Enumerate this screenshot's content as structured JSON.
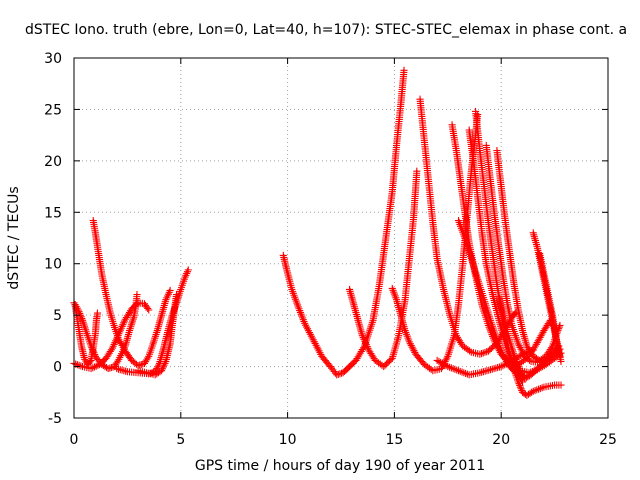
{
  "chart_data": {
    "type": "scatter",
    "title": "dSTEC Iono. truth (ebre, Lon=0, Lat=40, h=107): STEC-STEC_elemax in phase cont. a",
    "xlabel": "GPS time / hours of day 190 of year 2011",
    "ylabel": "dSTEC  / TECUs",
    "xlim": [
      0,
      25
    ],
    "ylim": [
      -5,
      30
    ],
    "grid": true,
    "marker": "+",
    "colors": {
      "series": "#ff0000",
      "axes": "#000000",
      "grid": "#a0a0a0",
      "background": "#ffffff"
    },
    "x_ticks": [
      {
        "value": 0,
        "label": "0"
      },
      {
        "value": 5,
        "label": "5"
      },
      {
        "value": 10,
        "label": "10"
      },
      {
        "value": 15,
        "label": "15"
      },
      {
        "value": 20,
        "label": "20"
      },
      {
        "value": 25,
        "label": "25"
      }
    ],
    "y_ticks": [
      {
        "value": -5,
        "label": "-5"
      },
      {
        "value": 0,
        "label": "0"
      },
      {
        "value": 5,
        "label": "5"
      },
      {
        "value": 10,
        "label": "10"
      },
      {
        "value": 15,
        "label": "15"
      },
      {
        "value": 20,
        "label": "20"
      },
      {
        "value": 25,
        "label": "25"
      },
      {
        "value": 30,
        "label": "30"
      }
    ],
    "series": [
      {
        "points": [
          [
            0.0,
            6.2
          ],
          [
            0.2,
            5.5
          ],
          [
            0.4,
            4.5
          ],
          [
            0.6,
            3.2
          ],
          [
            0.8,
            2.0
          ],
          [
            1.0,
            1.0
          ],
          [
            1.3,
            0.2
          ],
          [
            1.6,
            -0.2
          ],
          [
            1.9,
            0.0
          ],
          [
            2.1,
            0.7
          ],
          [
            2.4,
            2.0
          ],
          [
            2.6,
            3.5
          ],
          [
            2.8,
            4.8
          ],
          [
            2.9,
            6.0
          ],
          [
            2.95,
            7.0
          ]
        ]
      },
      {
        "points": [
          [
            0.05,
            6.0
          ],
          [
            0.2,
            4.0
          ],
          [
            0.35,
            2.0
          ],
          [
            0.5,
            0.7
          ],
          [
            0.65,
            0.2
          ],
          [
            0.8,
            0.6
          ],
          [
            0.9,
            1.8
          ],
          [
            1.0,
            3.2
          ],
          [
            1.05,
            4.5
          ],
          [
            1.1,
            5.2
          ]
        ]
      },
      {
        "points": [
          [
            0.9,
            14.2
          ],
          [
            1.0,
            13.0
          ],
          [
            1.15,
            11.0
          ],
          [
            1.3,
            9.0
          ],
          [
            1.5,
            7.0
          ],
          [
            1.7,
            5.2
          ],
          [
            1.9,
            3.8
          ],
          [
            2.1,
            2.6
          ],
          [
            2.4,
            1.5
          ],
          [
            2.7,
            0.6
          ],
          [
            3.0,
            0.1
          ],
          [
            3.3,
            0.3
          ],
          [
            3.5,
            1.0
          ],
          [
            3.7,
            2.2
          ],
          [
            3.9,
            3.5
          ],
          [
            4.1,
            5.0
          ],
          [
            4.3,
            6.5
          ],
          [
            4.5,
            7.4
          ]
        ]
      },
      {
        "points": [
          [
            0.0,
            0.3
          ],
          [
            0.4,
            0.0
          ],
          [
            0.8,
            -0.2
          ],
          [
            1.2,
            0.2
          ],
          [
            1.5,
            0.8
          ],
          [
            1.8,
            1.8
          ],
          [
            2.1,
            3.2
          ],
          [
            2.4,
            4.6
          ],
          [
            2.7,
            5.6
          ],
          [
            3.0,
            6.2
          ],
          [
            3.3,
            6.1
          ],
          [
            3.5,
            5.5
          ]
        ]
      },
      {
        "points": [
          [
            2.0,
            -0.2
          ],
          [
            2.5,
            -0.5
          ],
          [
            3.0,
            -0.6
          ],
          [
            3.5,
            -0.7
          ],
          [
            3.8,
            -0.5
          ],
          [
            4.0,
            0.3
          ],
          [
            4.2,
            1.8
          ],
          [
            4.4,
            3.5
          ],
          [
            4.6,
            5.0
          ],
          [
            4.8,
            6.2
          ],
          [
            5.0,
            7.5
          ],
          [
            5.2,
            8.7
          ],
          [
            5.35,
            9.4
          ]
        ]
      },
      {
        "points": [
          [
            3.0,
            -0.4
          ],
          [
            3.4,
            -0.6
          ],
          [
            3.8,
            -0.8
          ],
          [
            4.1,
            -0.4
          ],
          [
            4.3,
            0.5
          ],
          [
            4.5,
            2.2
          ],
          [
            4.6,
            4.0
          ],
          [
            4.7,
            5.5
          ],
          [
            4.8,
            7.0
          ]
        ]
      },
      {
        "points": [
          [
            9.8,
            10.8
          ],
          [
            9.95,
            9.5
          ],
          [
            10.2,
            7.5
          ],
          [
            10.5,
            5.8
          ],
          [
            10.8,
            4.2
          ],
          [
            11.2,
            2.6
          ],
          [
            11.6,
            1.0
          ],
          [
            12.0,
            0.0
          ],
          [
            12.3,
            -0.8
          ],
          [
            12.6,
            -0.6
          ],
          [
            12.9,
            0.0
          ],
          [
            13.2,
            0.6
          ],
          [
            13.6,
            2.0
          ],
          [
            14.0,
            4.5
          ],
          [
            14.3,
            8.0
          ],
          [
            14.6,
            12.5
          ],
          [
            14.9,
            17.0
          ],
          [
            15.1,
            21.5
          ],
          [
            15.3,
            25.5
          ],
          [
            15.45,
            28.8
          ]
        ]
      },
      {
        "points": [
          [
            12.9,
            7.5
          ],
          [
            13.1,
            6.0
          ],
          [
            13.3,
            4.5
          ],
          [
            13.5,
            3.0
          ],
          [
            13.8,
            1.6
          ],
          [
            14.1,
            0.6
          ],
          [
            14.5,
            0.0
          ],
          [
            14.9,
            0.8
          ],
          [
            15.2,
            3.0
          ],
          [
            15.5,
            6.5
          ],
          [
            15.7,
            10.5
          ],
          [
            15.9,
            14.5
          ],
          [
            16.05,
            19.0
          ]
        ]
      },
      {
        "points": [
          [
            14.9,
            7.6
          ],
          [
            15.1,
            6.5
          ],
          [
            15.3,
            5.0
          ],
          [
            15.5,
            3.5
          ],
          [
            15.7,
            2.4
          ],
          [
            16.0,
            1.2
          ],
          [
            16.4,
            0.2
          ],
          [
            16.8,
            -0.4
          ],
          [
            17.2,
            -0.2
          ],
          [
            17.5,
            1.0
          ],
          [
            17.8,
            3.0
          ],
          [
            18.0,
            6.0
          ],
          [
            18.2,
            10.0
          ],
          [
            18.4,
            14.5
          ],
          [
            18.6,
            19.0
          ],
          [
            18.8,
            22.5
          ],
          [
            18.9,
            24.5
          ]
        ]
      },
      {
        "points": [
          [
            16.2,
            26.0
          ],
          [
            16.4,
            22.0
          ],
          [
            16.6,
            18.0
          ],
          [
            16.8,
            14.0
          ],
          [
            17.0,
            10.5
          ],
          [
            17.3,
            7.5
          ],
          [
            17.6,
            5.0
          ],
          [
            17.9,
            3.0
          ],
          [
            18.2,
            2.0
          ],
          [
            18.6,
            1.4
          ],
          [
            19.0,
            1.2
          ],
          [
            19.4,
            1.5
          ],
          [
            19.8,
            2.3
          ],
          [
            20.2,
            3.6
          ],
          [
            20.5,
            4.8
          ],
          [
            20.7,
            5.3
          ]
        ]
      },
      {
        "points": [
          [
            17.7,
            23.5
          ],
          [
            17.9,
            21.0
          ],
          [
            18.1,
            18.0
          ],
          [
            18.3,
            15.0
          ],
          [
            18.5,
            12.0
          ],
          [
            18.8,
            8.8
          ],
          [
            19.1,
            6.0
          ],
          [
            19.4,
            4.0
          ],
          [
            19.7,
            2.4
          ],
          [
            20.0,
            1.2
          ],
          [
            20.4,
            0.4
          ],
          [
            20.8,
            0.2
          ],
          [
            21.2,
            0.8
          ],
          [
            21.6,
            2.0
          ],
          [
            22.0,
            3.5
          ],
          [
            22.3,
            4.5
          ]
        ]
      },
      {
        "points": [
          [
            17.0,
            0.6
          ],
          [
            17.5,
            0.0
          ],
          [
            18.0,
            -0.4
          ],
          [
            18.5,
            -0.8
          ],
          [
            19.0,
            -0.6
          ],
          [
            19.5,
            -0.3
          ],
          [
            20.0,
            0.0
          ],
          [
            20.5,
            0.5
          ],
          [
            21.0,
            1.2
          ],
          [
            21.5,
            1.6
          ]
        ]
      },
      {
        "points": [
          [
            18.0,
            14.2
          ],
          [
            18.3,
            12.5
          ],
          [
            18.6,
            10.5
          ],
          [
            18.9,
            8.5
          ],
          [
            19.2,
            6.5
          ],
          [
            19.5,
            4.5
          ],
          [
            19.8,
            2.6
          ],
          [
            20.1,
            1.0
          ],
          [
            20.4,
            0.0
          ],
          [
            20.7,
            -0.6
          ],
          [
            21.0,
            -0.9
          ]
        ]
      },
      {
        "points": [
          [
            18.5,
            23.0
          ],
          [
            18.7,
            20.0
          ],
          [
            18.9,
            16.5
          ],
          [
            19.1,
            13.0
          ],
          [
            19.3,
            10.0
          ],
          [
            19.6,
            7.0
          ],
          [
            19.9,
            4.5
          ],
          [
            20.2,
            2.2
          ],
          [
            20.5,
            0.5
          ],
          [
            20.8,
            -0.8
          ],
          [
            21.0,
            -1.5
          ]
        ]
      },
      {
        "points": [
          [
            18.8,
            24.8
          ],
          [
            19.0,
            21.0
          ],
          [
            19.2,
            17.5
          ],
          [
            19.4,
            14.0
          ],
          [
            19.6,
            11.0
          ],
          [
            19.8,
            8.0
          ],
          [
            20.0,
            5.5
          ],
          [
            20.2,
            3.2
          ],
          [
            20.4,
            1.2
          ],
          [
            20.6,
            -0.3
          ],
          [
            20.8,
            -1.5
          ],
          [
            21.0,
            -2.5
          ],
          [
            21.2,
            -2.8
          ],
          [
            21.5,
            -2.4
          ],
          [
            22.0,
            -2.0
          ],
          [
            22.5,
            -1.8
          ],
          [
            22.8,
            -1.8
          ]
        ]
      },
      {
        "points": [
          [
            19.8,
            21.0
          ],
          [
            20.0,
            17.5
          ],
          [
            20.2,
            14.0
          ],
          [
            20.4,
            11.0
          ],
          [
            20.6,
            8.0
          ],
          [
            20.8,
            5.5
          ],
          [
            21.0,
            3.5
          ],
          [
            21.2,
            2.0
          ],
          [
            21.5,
            1.0
          ],
          [
            21.8,
            0.6
          ],
          [
            22.1,
            1.0
          ],
          [
            22.4,
            2.0
          ],
          [
            22.6,
            3.2
          ],
          [
            22.75,
            4.0
          ]
        ]
      },
      {
        "points": [
          [
            19.3,
            21.5
          ],
          [
            19.5,
            18.0
          ],
          [
            19.7,
            14.5
          ],
          [
            19.9,
            11.5
          ],
          [
            20.1,
            8.5
          ],
          [
            20.3,
            6.0
          ],
          [
            20.5,
            4.0
          ],
          [
            20.8,
            2.2
          ],
          [
            21.1,
            1.0
          ],
          [
            21.4,
            0.5
          ],
          [
            21.8,
            0.4
          ],
          [
            22.2,
            0.9
          ],
          [
            22.5,
            1.5
          ],
          [
            22.7,
            2.0
          ]
        ]
      },
      {
        "points": [
          [
            19.9,
            6.8
          ],
          [
            20.1,
            5.0
          ],
          [
            20.3,
            3.2
          ],
          [
            20.5,
            1.8
          ],
          [
            20.7,
            0.5
          ],
          [
            20.9,
            -0.5
          ],
          [
            21.1,
            -1.2
          ],
          [
            21.4,
            -0.8
          ],
          [
            21.7,
            -0.2
          ],
          [
            22.0,
            0.4
          ],
          [
            22.3,
            0.9
          ],
          [
            22.6,
            1.4
          ],
          [
            22.75,
            1.7
          ]
        ]
      },
      {
        "points": [
          [
            21.5,
            13.0
          ],
          [
            21.7,
            11.5
          ],
          [
            21.9,
            9.5
          ],
          [
            22.1,
            7.5
          ],
          [
            22.3,
            5.5
          ],
          [
            22.5,
            3.5
          ],
          [
            22.65,
            1.8
          ],
          [
            22.75,
            1.0
          ]
        ]
      },
      {
        "points": [
          [
            21.8,
            11.0
          ],
          [
            22.0,
            9.0
          ],
          [
            22.2,
            7.0
          ],
          [
            22.4,
            5.0
          ],
          [
            22.55,
            3.0
          ],
          [
            22.7,
            1.5
          ],
          [
            22.8,
            0.5
          ]
        ]
      },
      {
        "points": [
          [
            20.5,
            0.0
          ],
          [
            20.9,
            -0.4
          ],
          [
            21.3,
            -0.6
          ],
          [
            21.7,
            -0.3
          ],
          [
            22.1,
            0.2
          ],
          [
            22.5,
            0.8
          ],
          [
            22.8,
            1.3
          ]
        ]
      }
    ]
  }
}
